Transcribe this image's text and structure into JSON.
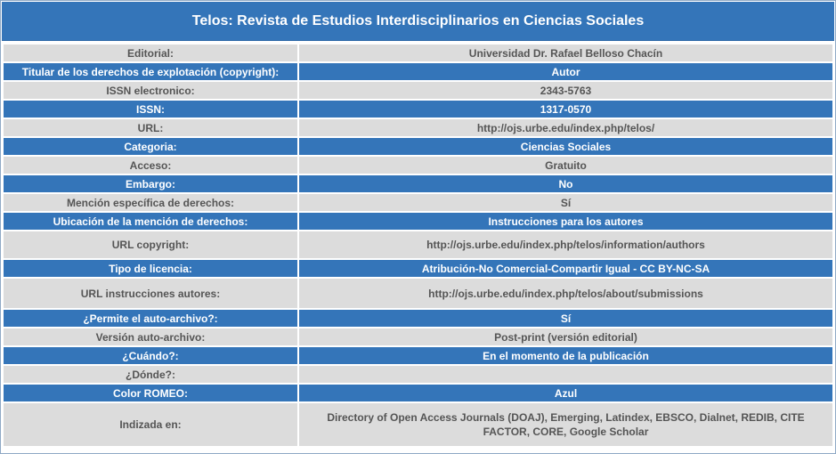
{
  "title": "Telos: Revista de Estudios Interdisciplinarios en Ciencias Sociales",
  "rows": [
    {
      "label": "Editorial:",
      "value": "Universidad Dr. Rafael Belloso Chacín"
    },
    {
      "label": "Titular de los derechos de explotación (copyright):",
      "value": "Autor"
    },
    {
      "label": "ISSN electronico:",
      "value": "2343-5763"
    },
    {
      "label": "ISSN:",
      "value": "1317-0570"
    },
    {
      "label": "URL:",
      "value": "http://ojs.urbe.edu/index.php/telos/"
    },
    {
      "label": "Categoria:",
      "value": "Ciencias Sociales"
    },
    {
      "label": "Acceso:",
      "value": "Gratuito"
    },
    {
      "label": "Embargo:",
      "value": "No"
    },
    {
      "label": "Mención específica de derechos:",
      "value": "Sí"
    },
    {
      "label": "Ubicación de la mención de derechos:",
      "value": "Instrucciones para los autores"
    },
    {
      "label": "URL copyright:",
      "value": "http://ojs.urbe.edu/index.php/telos/information/authors"
    },
    {
      "label": "Tipo de licencia:",
      "value": "Atribución-No Comercial-Compartir Igual - CC BY-NC-SA"
    },
    {
      "label": "URL instrucciones autores:",
      "value": "http://ojs.urbe.edu/index.php/telos/about/submissions"
    },
    {
      "label": "¿Permite el auto-archivo?:",
      "value": "Sí"
    },
    {
      "label": "Versión auto-archivo:",
      "value": "Post-print (versión editorial)"
    },
    {
      "label": "¿Cuándo?:",
      "value": "En el momento de la publicación"
    },
    {
      "label": "¿Dónde?:",
      "value": ""
    },
    {
      "label": "Color ROMEO:",
      "value": "Azul"
    },
    {
      "label": "Indizada en:",
      "value": "Directory of Open Access Journals (DOAJ), Emerging, Latindex, EBSCO, Dialnet, REDIB, CITE FACTOR, CORE, Google Scholar"
    }
  ],
  "colors": {
    "header_blue": "#3475b9",
    "row_gray": "#dcdcdc",
    "text_gray": "#555555"
  }
}
